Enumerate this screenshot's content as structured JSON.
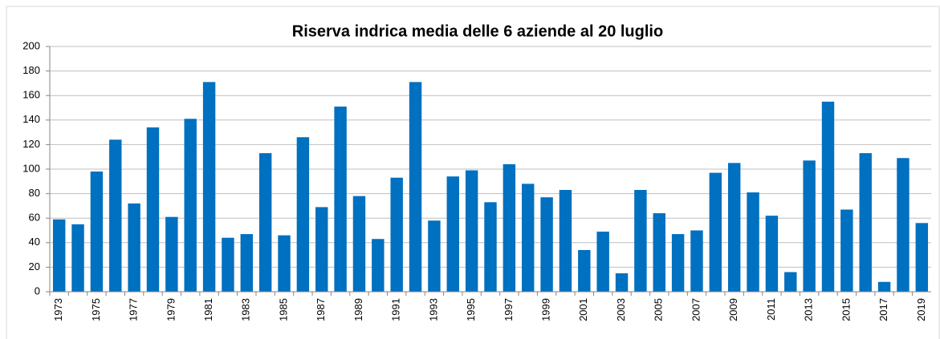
{
  "chart_data": {
    "type": "bar",
    "title": "Riserva indrica media delle 6 aziende al 20 luglio",
    "categories": [
      "1973",
      null,
      "1975",
      null,
      "1977",
      null,
      "1979",
      null,
      "1981",
      null,
      "1983",
      null,
      "1985",
      null,
      "1987",
      null,
      "1989",
      null,
      "1991",
      null,
      "1993",
      null,
      "1995",
      null,
      "1997",
      null,
      "1999",
      null,
      "2001",
      null,
      "2003",
      null,
      "2005",
      null,
      "2007",
      null,
      "2009",
      null,
      "2011",
      null,
      "2013",
      null,
      "2015",
      null,
      "2017",
      null,
      "2019"
    ],
    "values": [
      59,
      55,
      98,
      124,
      72,
      134,
      61,
      141,
      171,
      44,
      47,
      113,
      46,
      126,
      69,
      151,
      78,
      43,
      93,
      171,
      58,
      94,
      99,
      73,
      104,
      88,
      77,
      83,
      34,
      49,
      15,
      83,
      64,
      47,
      50,
      97,
      105,
      81,
      62,
      16,
      107,
      155,
      67,
      113,
      8,
      109,
      56
    ],
    "color": "#0070c0",
    "ylim": [
      0,
      200
    ],
    "yticks": [
      0,
      20,
      40,
      60,
      80,
      100,
      120,
      140,
      160,
      180,
      200
    ],
    "grid": true
  }
}
